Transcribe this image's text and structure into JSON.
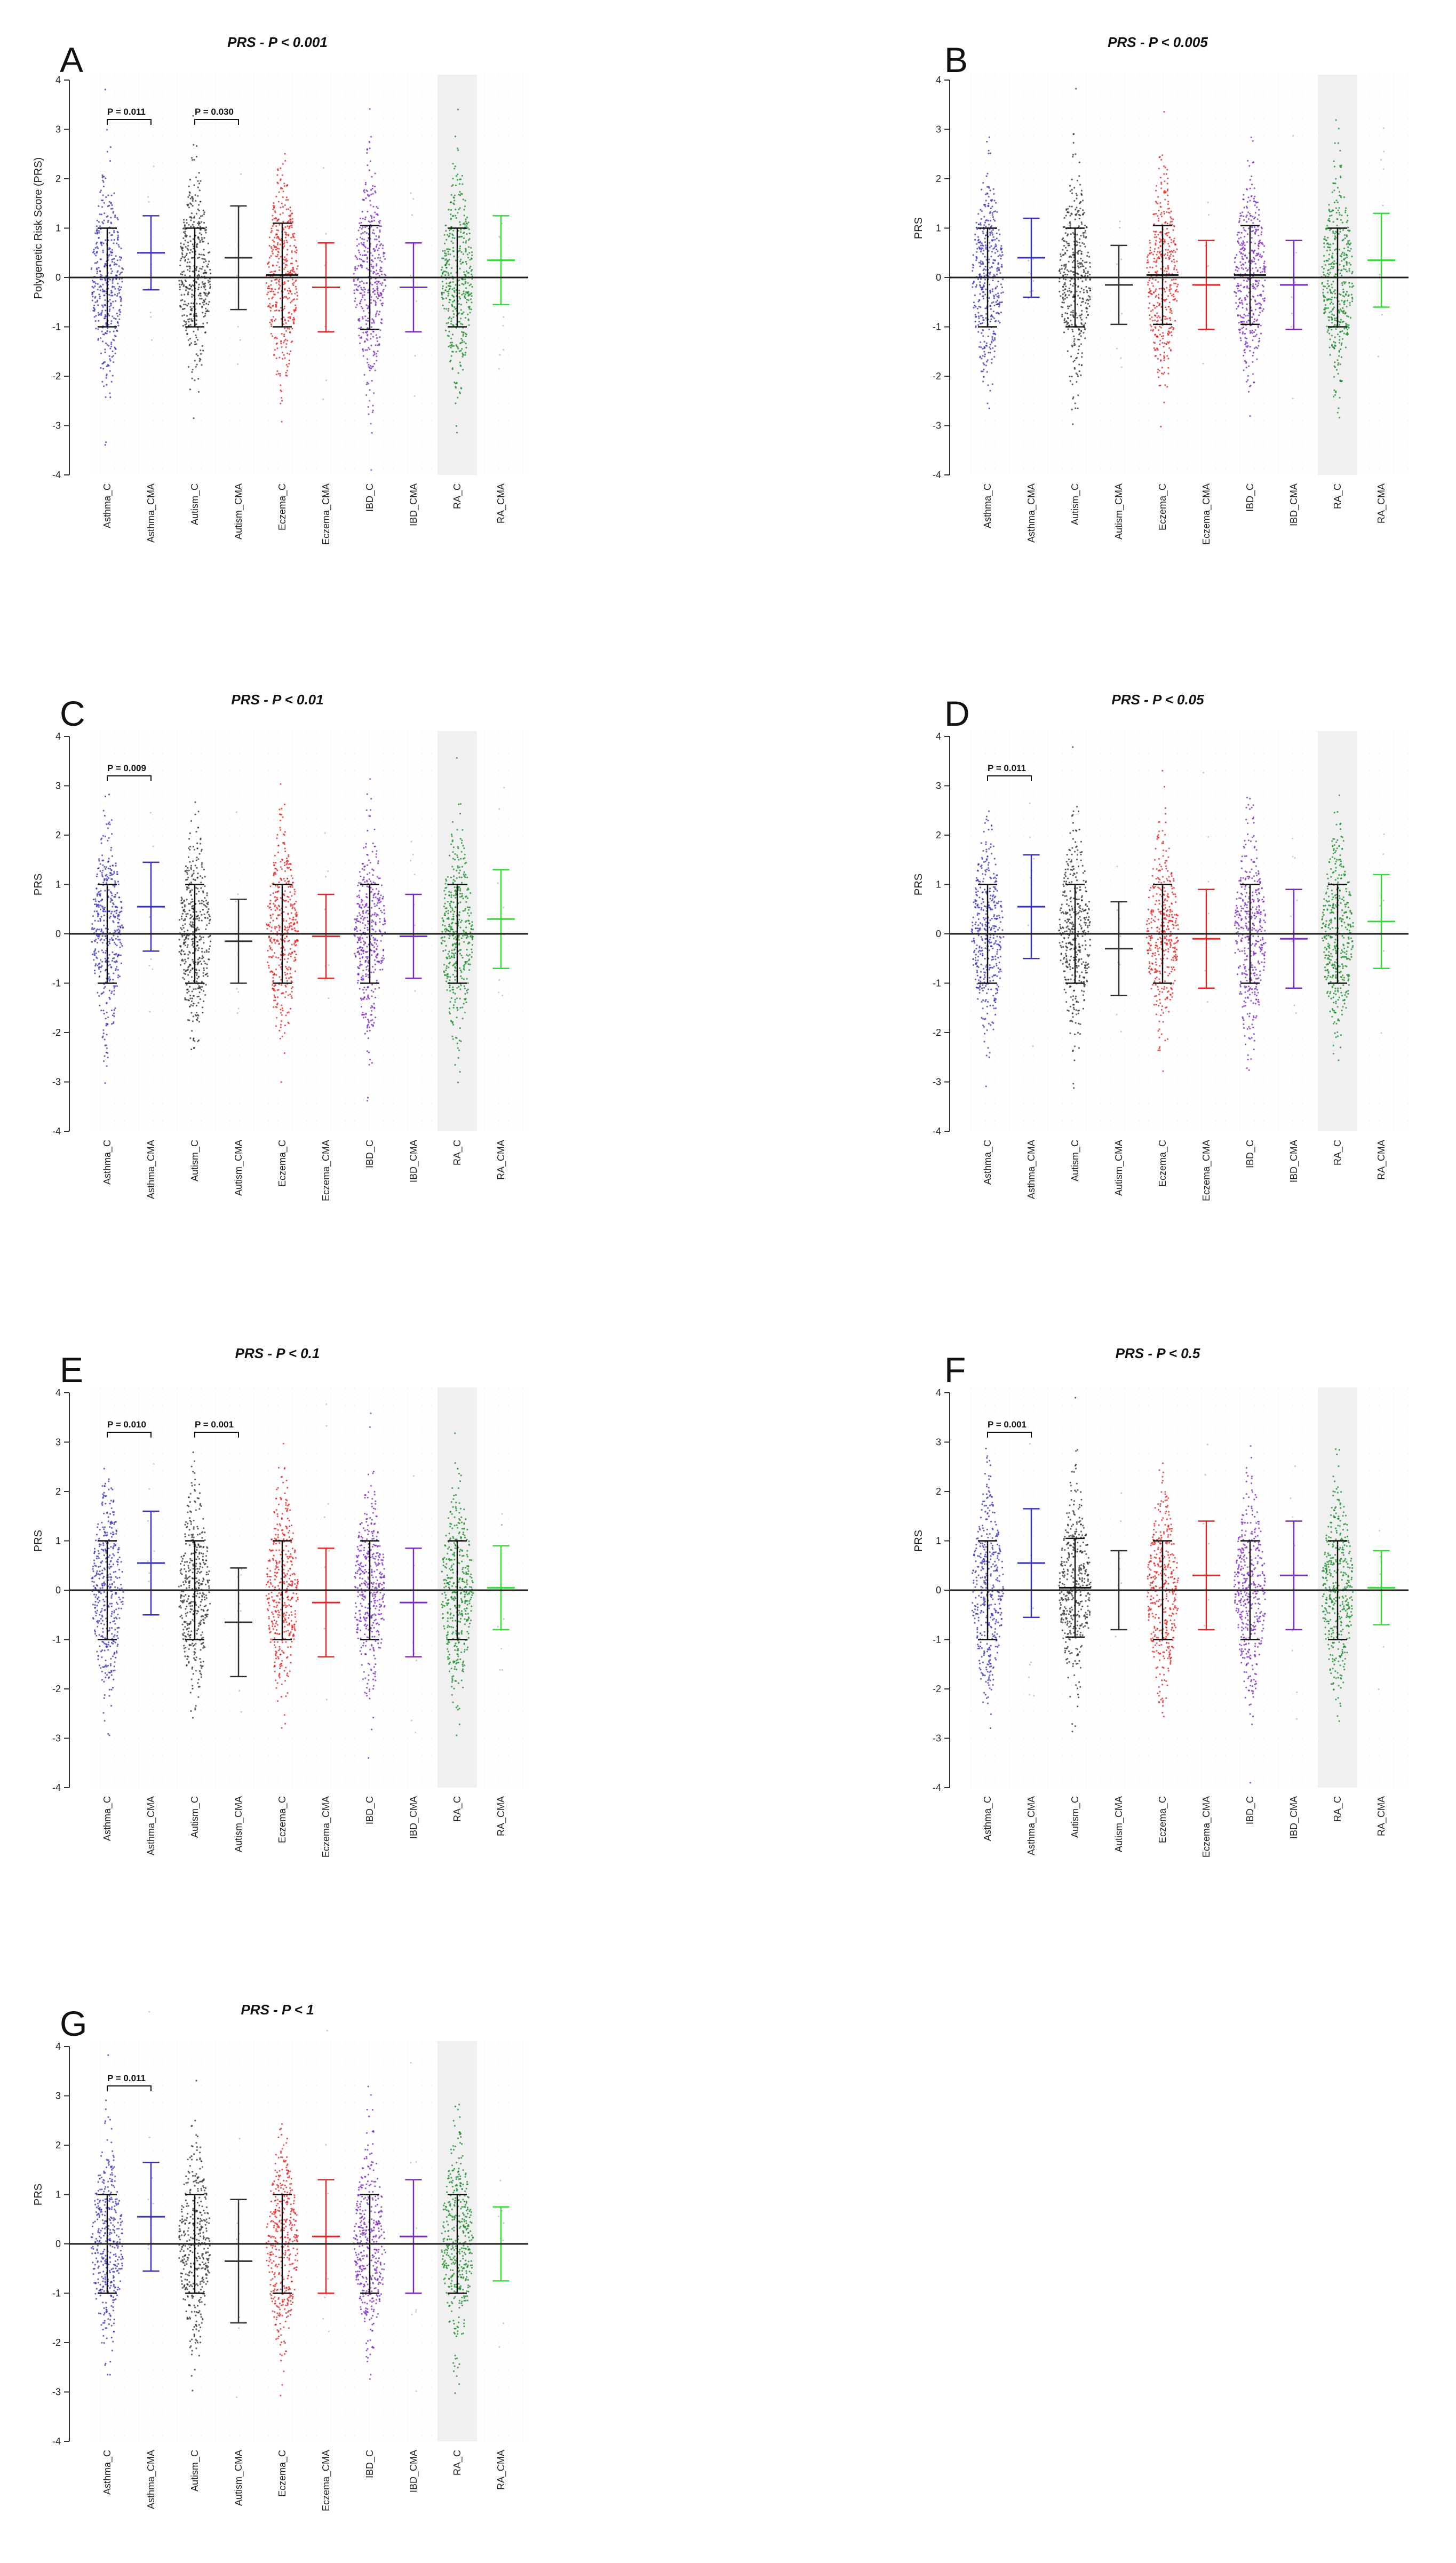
{
  "colors": {
    "Asthma": "#3a35b8",
    "Autism": "#303030",
    "Eczema": "#e02727",
    "IBD": "#7a2bbf",
    "RA": "#1a8a2a",
    "RA_CMA_line": "#33dd33"
  },
  "chart_data": [
    {
      "type": "scatter",
      "panel": "A",
      "title": "PRS - P < 0.001",
      "ylabel": "Polygenetic Risk Score (PRS)",
      "ylim": [
        -4,
        4
      ],
      "yticks": [
        4,
        3,
        2,
        1,
        0,
        -1,
        -2,
        -3,
        -4
      ],
      "categories": [
        "Asthma_C",
        "Asthma_CMA",
        "Autism_C",
        "Autism_CMA",
        "Eczema_C",
        "Eczema_CMA",
        "IBD_C",
        "IBD_CMA",
        "RA_C",
        "RA_CMA"
      ],
      "means": [
        0,
        0.5,
        0,
        0.4,
        0.05,
        -0.2,
        0,
        -0.2,
        0,
        0.35
      ],
      "sds": [
        1.0,
        0.75,
        1.0,
        1.05,
        1.05,
        0.9,
        1.05,
        0.9,
        1.0,
        0.9
      ],
      "annotations": [
        {
          "text": "P = 0.011",
          "from": 0,
          "to": 1,
          "y": 3.2
        },
        {
          "text": "P = 0.030",
          "from": 2,
          "to": 3,
          "y": 3.2
        }
      ]
    },
    {
      "type": "scatter",
      "panel": "B",
      "title": "PRS - P < 0.005",
      "ylabel": "PRS",
      "ylim": [
        -4,
        4
      ],
      "yticks": [
        4,
        3,
        2,
        1,
        0,
        -1,
        -2,
        -3,
        -4
      ],
      "categories": [
        "Asthma_C",
        "Asthma_CMA",
        "Autism_C",
        "Autism_CMA",
        "Eczema_C",
        "Eczema_CMA",
        "IBD_C",
        "IBD_CMA",
        "RA_C",
        "RA_CMA"
      ],
      "means": [
        0,
        0.4,
        0,
        -0.15,
        0.05,
        -0.15,
        0.05,
        -0.15,
        0,
        0.35
      ],
      "sds": [
        1.0,
        0.8,
        1.0,
        0.8,
        1.0,
        0.9,
        1.0,
        0.9,
        1.0,
        0.95
      ],
      "annotations": []
    },
    {
      "type": "scatter",
      "panel": "C",
      "title": "PRS - P < 0.01",
      "ylabel": "PRS",
      "ylim": [
        -4,
        4
      ],
      "yticks": [
        4,
        3,
        2,
        1,
        0,
        -1,
        -2,
        -3,
        -4
      ],
      "categories": [
        "Asthma_C",
        "Asthma_CMA",
        "Autism_C",
        "Autism_CMA",
        "Eczema_C",
        "Eczema_CMA",
        "IBD_C",
        "IBD_CMA",
        "RA_C",
        "RA_CMA"
      ],
      "means": [
        0,
        0.55,
        0,
        -0.15,
        0,
        -0.05,
        0,
        -0.05,
        0,
        0.3
      ],
      "sds": [
        1.0,
        0.9,
        1.0,
        0.85,
        1.0,
        0.85,
        1.0,
        0.85,
        1.0,
        1.0
      ],
      "annotations": [
        {
          "text": "P = 0.009",
          "from": 0,
          "to": 1,
          "y": 3.2
        }
      ]
    },
    {
      "type": "scatter",
      "panel": "D",
      "title": "PRS - P < 0.05",
      "ylabel": "PRS",
      "ylim": [
        -4,
        4
      ],
      "yticks": [
        4,
        3,
        2,
        1,
        0,
        -1,
        -2,
        -3,
        -4
      ],
      "categories": [
        "Asthma_C",
        "Asthma_CMA",
        "Autism_C",
        "Autism_CMA",
        "Eczema_C",
        "Eczema_CMA",
        "IBD_C",
        "IBD_CMA",
        "RA_C",
        "RA_CMA"
      ],
      "means": [
        0,
        0.55,
        0,
        -0.3,
        0,
        -0.1,
        0,
        -0.1,
        0,
        0.25
      ],
      "sds": [
        1.0,
        1.05,
        1.0,
        0.95,
        1.0,
        1.0,
        1.0,
        1.0,
        1.0,
        0.95
      ],
      "annotations": [
        {
          "text": "P = 0.011",
          "from": 0,
          "to": 1,
          "y": 3.2
        }
      ]
    },
    {
      "type": "scatter",
      "panel": "E",
      "title": "PRS - P < 0.1",
      "ylabel": "PRS",
      "ylim": [
        -4,
        4
      ],
      "yticks": [
        4,
        3,
        2,
        1,
        0,
        -1,
        -2,
        -3,
        -4
      ],
      "categories": [
        "Asthma_C",
        "Asthma_CMA",
        "Autism_C",
        "Autism_CMA",
        "Eczema_C",
        "Eczema_CMA",
        "IBD_C",
        "IBD_CMA",
        "RA_C",
        "RA_CMA"
      ],
      "means": [
        0,
        0.55,
        0,
        -0.65,
        0,
        -0.25,
        0,
        -0.25,
        0,
        0.05
      ],
      "sds": [
        1.0,
        1.05,
        1.0,
        1.1,
        1.0,
        1.1,
        1.0,
        1.1,
        1.0,
        0.85
      ],
      "annotations": [
        {
          "text": "P = 0.010",
          "from": 0,
          "to": 1,
          "y": 3.2
        },
        {
          "text": "P = 0.001",
          "from": 2,
          "to": 3,
          "y": 3.2
        }
      ]
    },
    {
      "type": "scatter",
      "panel": "F",
      "title": "PRS - P < 0.5",
      "ylabel": "PRS",
      "ylim": [
        -4,
        4
      ],
      "yticks": [
        4,
        3,
        2,
        1,
        0,
        -1,
        -2,
        -3,
        -4
      ],
      "categories": [
        "Asthma_C",
        "Asthma_CMA",
        "Autism_C",
        "Autism_CMA",
        "Eczema_C",
        "Eczema_CMA",
        "IBD_C",
        "IBD_CMA",
        "RA_C",
        "RA_CMA"
      ],
      "means": [
        0,
        0.55,
        0.05,
        0,
        0,
        0.3,
        0,
        0.3,
        0,
        0.05
      ],
      "sds": [
        1.0,
        1.1,
        1.0,
        0.8,
        1.0,
        1.1,
        1.0,
        1.1,
        1.0,
        0.75
      ],
      "annotations": [
        {
          "text": "P = 0.001",
          "from": 0,
          "to": 1,
          "y": 3.2
        }
      ]
    },
    {
      "type": "scatter",
      "panel": "G",
      "title": "PRS - P < 1",
      "ylabel": "PRS",
      "ylim": [
        -4,
        4
      ],
      "yticks": [
        4,
        3,
        2,
        1,
        0,
        -1,
        -2,
        -3,
        -4
      ],
      "categories": [
        "Asthma_C",
        "Asthma_CMA",
        "Autism_C",
        "Autism_CMA",
        "Eczema_C",
        "Eczema_CMA",
        "IBD_C",
        "IBD_CMA",
        "RA_C",
        "RA_CMA"
      ],
      "means": [
        0,
        0.55,
        0,
        -0.35,
        0,
        0.15,
        0,
        0.15,
        0,
        0
      ],
      "sds": [
        1.0,
        1.1,
        1.0,
        1.25,
        1.0,
        1.15,
        1.0,
        1.15,
        1.0,
        0.75
      ],
      "annotations": [
        {
          "text": "P = 0.011",
          "from": 0,
          "to": 1,
          "y": 3.2
        }
      ]
    }
  ]
}
